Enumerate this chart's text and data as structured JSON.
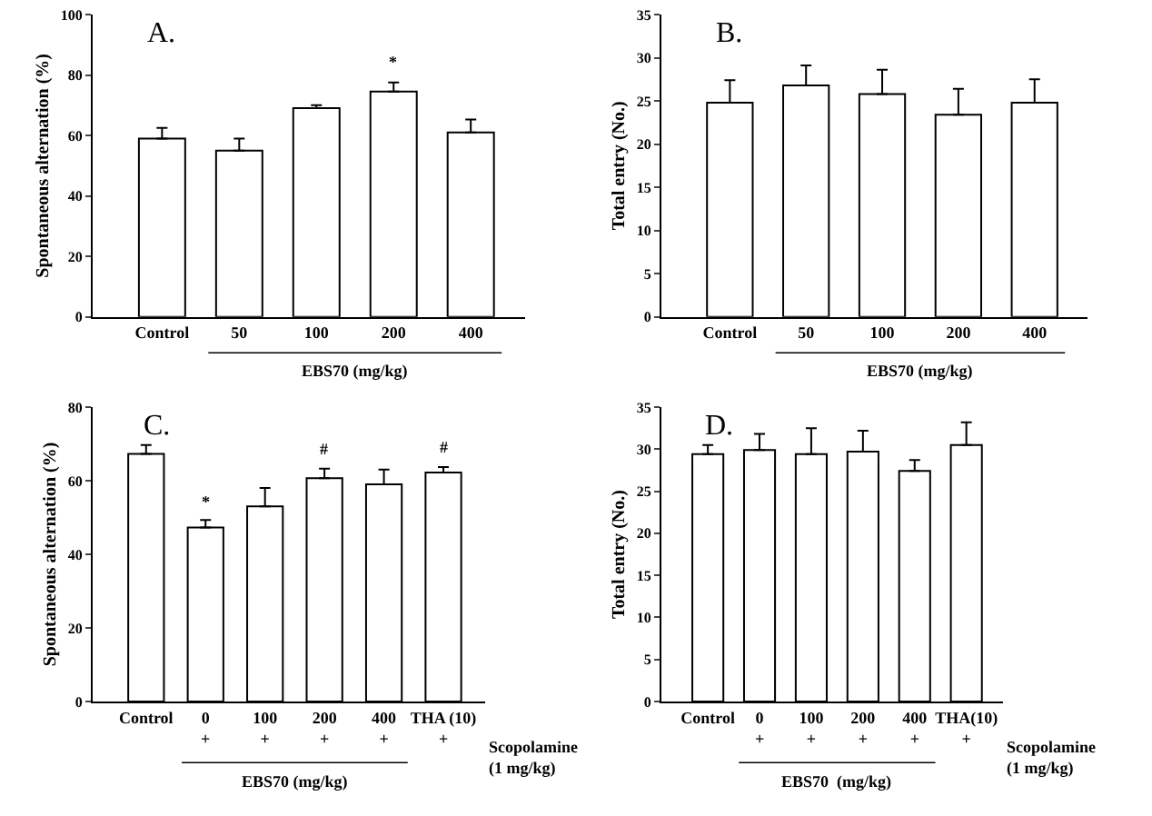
{
  "chart_data": [
    {
      "type": "bar",
      "title": "A.",
      "ylabel": "Spontaneous alternation (%)",
      "xlabel": "EBS70 (mg/kg)",
      "categories": [
        "Control",
        "50",
        "100",
        "200",
        "400"
      ],
      "color": "#ffffff",
      "values": [
        59,
        55,
        69,
        74.5,
        61
      ],
      "errors": [
        [
          59,
          62.5
        ],
        [
          55,
          59
        ],
        [
          69,
          70
        ],
        [
          74.5,
          77.5
        ],
        [
          61,
          65.3
        ]
      ],
      "ylim": [
        0,
        100
      ],
      "yticks": [
        0,
        20,
        40,
        60,
        80,
        100
      ],
      "annotations": [
        {
          "text": "*",
          "x": "200",
          "y": 80
        }
      ]
    },
    {
      "type": "bar",
      "title": "B.",
      "ylabel": "Total entry (No.)",
      "xlabel": "EBS70 (mg/kg)",
      "categories": [
        "Control",
        "50",
        "100",
        "200",
        "400"
      ],
      "color": "#ffffff",
      "values": [
        24.8,
        26.8,
        25.8,
        23.4,
        24.8
      ],
      "errors": [
        [
          24.8,
          27.4
        ],
        [
          26.8,
          29.1
        ],
        [
          25.8,
          28.6
        ],
        [
          23.4,
          26.4
        ],
        [
          24.8,
          27.5
        ]
      ],
      "ylim": [
        0,
        35
      ],
      "yticks": [
        0,
        5,
        10,
        15,
        20,
        25,
        30,
        35
      ]
    },
    {
      "type": "bar",
      "title": "C.",
      "ylabel": "Spontaneous alternation (%)",
      "xlabel": "EBS70 (mg/kg)",
      "categories": [
        "Control",
        "0\n+",
        "100\n+",
        "200\n+",
        "400\n+",
        "THA (10)\n+"
      ],
      "color": "#ffffff",
      "values": [
        67.3,
        47.3,
        53,
        60.7,
        59,
        62.2
      ],
      "errors": [
        [
          67.3,
          69.7
        ],
        [
          47.3,
          49.3
        ],
        [
          53,
          58
        ],
        [
          60.7,
          63.3
        ],
        [
          59,
          63
        ],
        [
          62.2,
          63.7
        ]
      ],
      "ylim": [
        0,
        80
      ],
      "yticks": [
        0,
        20,
        40,
        60,
        80
      ],
      "annotations": [
        {
          "text": "*",
          "x": "0\n+",
          "y": 51
        },
        {
          "text": "#",
          "x": "200\n+",
          "y": 65
        },
        {
          "text": "#",
          "x": "THA (10)\n+",
          "y": 65.5
        },
        "Scopolamine\n(1 mg/kg)"
      ]
    },
    {
      "type": "bar",
      "title": "D.",
      "ylabel": "Total entry (No.)",
      "xlabel": "EBS70  (mg/kg)",
      "categories": [
        "Control",
        "0\n+",
        "100\n+",
        "200\n+",
        "400\n+",
        "THA(10)\n+"
      ],
      "color": "#ffffff",
      "values": [
        29.4,
        29.9,
        29.4,
        29.7,
        27.4,
        30.5
      ],
      "errors": [
        [
          29.4,
          30.5
        ],
        [
          29.9,
          31.8
        ],
        [
          29.4,
          32.5
        ],
        [
          29.7,
          32.2
        ],
        [
          27.4,
          28.7
        ],
        [
          30.5,
          33.2
        ]
      ],
      "ylim": [
        0,
        35
      ],
      "yticks": [
        0,
        5,
        10,
        15,
        20,
        25,
        30,
        35
      ],
      "annotations": [
        "Scopolamine\n(1 mg/kg)"
      ]
    }
  ]
}
